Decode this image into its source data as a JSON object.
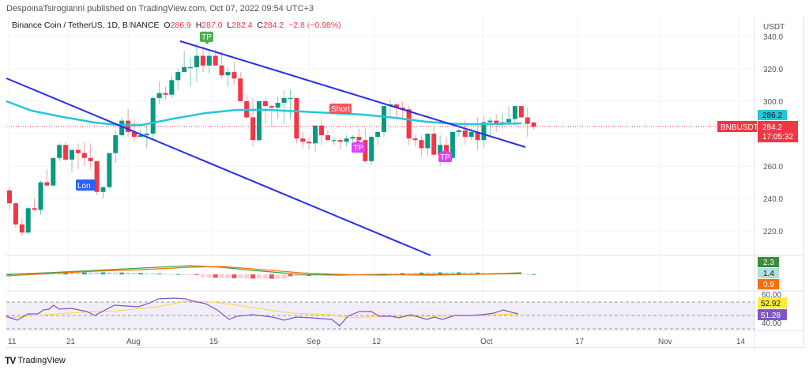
{
  "publisher": "DespoinaTsirogianni published on TradingView.com, Oct 07, 2022 09:54 UTC+3",
  "legend": {
    "symbol_desc": "Binance Coin / TetherUS, 1D, BINANCE",
    "o_label": "O",
    "o": "286.9",
    "h_label": "H",
    "h": "287.0",
    "l_label": "L",
    "l": "282.4",
    "c_label": "C",
    "c": "284.2",
    "change": "−2.8 (−0.98%)"
  },
  "price_scale": {
    "currency": "USDT",
    "ticks": [
      "340.0",
      "320.0",
      "300.0",
      "260.0",
      "240.0",
      "220.0"
    ],
    "ma_label": "286.2",
    "symbol_label": "BNBUSDT",
    "last_price": "284.2",
    "countdown": "17:05:32"
  },
  "macd_scale": {
    "macd": "2.3",
    "hist": "1.4",
    "signal": "0.9"
  },
  "rsi_scale": {
    "top": "60.00",
    "ma": "52.92",
    "rsi": "51.28",
    "bottom": "40.00"
  },
  "time_axis": [
    "11",
    "21",
    "Aug",
    "15",
    "Sep",
    "12",
    "Oct",
    "17",
    "Nov",
    "14"
  ],
  "annotations": {
    "tp1": "TP",
    "long": "Lon",
    "short": "Short",
    "tp2": "TP",
    "tp3": "TP"
  },
  "footer": {
    "brand": "TradingView",
    "logo": "TV"
  },
  "colors": {
    "up": "#089981",
    "down": "#f23645",
    "ma": "#26c6da",
    "trend": "#2a2ee8",
    "rsi": "#7e57c2",
    "rsi_ma": "#fdd835",
    "macd": "#43a047",
    "signal": "#ff6d00"
  },
  "chart_data": {
    "type": "candlestick",
    "title": "Binance Coin / TetherUS, 1D, BINANCE",
    "ylabel": "USDT",
    "ylim": [
      212,
      342
    ],
    "x_ticks": [
      "11",
      "21",
      "Aug",
      "15",
      "Sep",
      "12",
      "Oct",
      "17",
      "Nov",
      "14"
    ],
    "last": {
      "open": 286.9,
      "high": 287.0,
      "low": 282.4,
      "close": 284.2
    },
    "moving_average_last": 286.2,
    "candles": [
      [
        245,
        247,
        233,
        237
      ],
      [
        237,
        238,
        222,
        224
      ],
      [
        224,
        228,
        217,
        219
      ],
      [
        219,
        235,
        218,
        234
      ],
      [
        234,
        240,
        232,
        233
      ],
      [
        233,
        251,
        230,
        250
      ],
      [
        250,
        258,
        248,
        248
      ],
      [
        248,
        263,
        247,
        265
      ],
      [
        265,
        274,
        263,
        273
      ],
      [
        273,
        275,
        263,
        264
      ],
      [
        264,
        270,
        256,
        270
      ],
      [
        270,
        274,
        258,
        268
      ],
      [
        268,
        275,
        260,
        265
      ],
      [
        265,
        274,
        258,
        263
      ],
      [
        263,
        263,
        242,
        244
      ],
      [
        244,
        247,
        240,
        247
      ],
      [
        247,
        267,
        246,
        268
      ],
      [
        268,
        282,
        262,
        279
      ],
      [
        279,
        290,
        278,
        288
      ],
      [
        288,
        295,
        278,
        281
      ],
      [
        281,
        289,
        275,
        278
      ],
      [
        278,
        282,
        278,
        279
      ],
      [
        279,
        285,
        271,
        280
      ],
      [
        280,
        303,
        276,
        302
      ],
      [
        302,
        312,
        298,
        305
      ],
      [
        305,
        309,
        301,
        304
      ],
      [
        304,
        316,
        302,
        313
      ],
      [
        313,
        320,
        307,
        318
      ],
      [
        318,
        331,
        318,
        321
      ],
      [
        321,
        327,
        309,
        321
      ],
      [
        321,
        336,
        312,
        328
      ],
      [
        328,
        334,
        318,
        322
      ],
      [
        322,
        332,
        317,
        328
      ],
      [
        328,
        332,
        322,
        322
      ],
      [
        322,
        331,
        314,
        316
      ],
      [
        316,
        321,
        309,
        318
      ],
      [
        318,
        324,
        310,
        314
      ],
      [
        314,
        318,
        302,
        300
      ],
      [
        300,
        304,
        289,
        290
      ],
      [
        290,
        302,
        272,
        276
      ],
      [
        276,
        300,
        275,
        300
      ],
      [
        300,
        302,
        286,
        297
      ],
      [
        297,
        298,
        284,
        296
      ],
      [
        296,
        303,
        289,
        299
      ],
      [
        299,
        307,
        286,
        302
      ],
      [
        302,
        307,
        289,
        302
      ],
      [
        302,
        302,
        274,
        277
      ],
      [
        277,
        281,
        271,
        275
      ],
      [
        275,
        278,
        270,
        274
      ],
      [
        274,
        285,
        269,
        285
      ],
      [
        285,
        289,
        273,
        279
      ],
      [
        279,
        282,
        275,
        276
      ],
      [
        276,
        278,
        273,
        276
      ],
      [
        276,
        277,
        270,
        275
      ],
      [
        275,
        279,
        272,
        277
      ],
      [
        277,
        279,
        275,
        278
      ],
      [
        278,
        283,
        273,
        276
      ],
      [
        276,
        283,
        262,
        263
      ],
      [
        263,
        279,
        261,
        278
      ],
      [
        278,
        282,
        273,
        281
      ],
      [
        281,
        297,
        278,
        297
      ],
      [
        297,
        301,
        290,
        298
      ],
      [
        298,
        299,
        290,
        296
      ],
      [
        296,
        300,
        288,
        295
      ],
      [
        295,
        297,
        273,
        277
      ],
      [
        277,
        279,
        272,
        276
      ],
      [
        276,
        279,
        266,
        271
      ],
      [
        271,
        280,
        266,
        280
      ],
      [
        280,
        284,
        267,
        267
      ],
      [
        267,
        279,
        260,
        273
      ],
      [
        273,
        278,
        266,
        265
      ],
      [
        265,
        282,
        264,
        281
      ],
      [
        281,
        283,
        278,
        282
      ],
      [
        282,
        288,
        273,
        278
      ],
      [
        278,
        283,
        276,
        281
      ],
      [
        281,
        290,
        270,
        276
      ],
      [
        276,
        291,
        271,
        287
      ],
      [
        287,
        290,
        278,
        288
      ],
      [
        288,
        292,
        281,
        286
      ],
      [
        286,
        293,
        283,
        287
      ],
      [
        287,
        297,
        285,
        289
      ],
      [
        289,
        297,
        285,
        297
      ],
      [
        297,
        297,
        290,
        290
      ],
      [
        290,
        296,
        278,
        286
      ],
      [
        286.9,
        287,
        282.4,
        284.2
      ]
    ]
  }
}
